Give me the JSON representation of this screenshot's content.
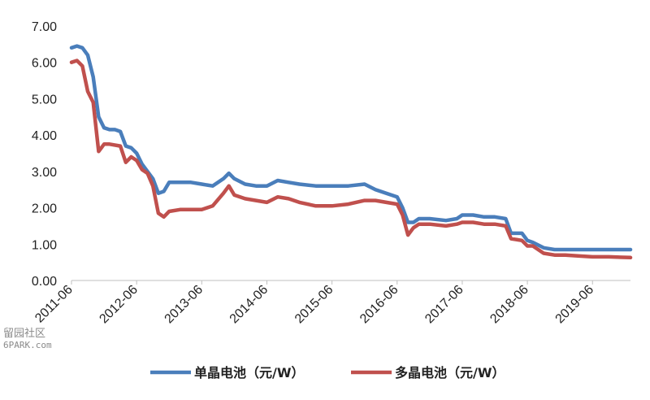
{
  "chart_data": {
    "type": "line",
    "title": "",
    "xlabel": "",
    "ylabel": "",
    "ylim": [
      0,
      7
    ],
    "x_range": [
      "2011-06",
      "2020-01"
    ],
    "y_ticks": [
      "0.00",
      "1.00",
      "2.00",
      "3.00",
      "4.00",
      "5.00",
      "6.00",
      "7.00"
    ],
    "x_ticks": [
      "2011-06",
      "2012-06",
      "2013-06",
      "2014-06",
      "2015-06",
      "2016-06",
      "2017-06",
      "2018-06",
      "2019-06"
    ],
    "grid": false,
    "legend_position": "bottom",
    "series": [
      {
        "name": "单晶电池（元/W）",
        "color": "#4a7ebb",
        "points": [
          [
            "2011-06",
            6.4
          ],
          [
            "2011-07",
            6.45
          ],
          [
            "2011-08",
            6.4
          ],
          [
            "2011-09",
            6.2
          ],
          [
            "2011-10",
            5.6
          ],
          [
            "2011-11",
            4.5
          ],
          [
            "2011-12",
            4.2
          ],
          [
            "2012-01",
            4.15
          ],
          [
            "2012-02",
            4.15
          ],
          [
            "2012-03",
            4.1
          ],
          [
            "2012-04",
            3.7
          ],
          [
            "2012-05",
            3.65
          ],
          [
            "2012-06",
            3.5
          ],
          [
            "2012-07",
            3.2
          ],
          [
            "2012-08",
            3.0
          ],
          [
            "2012-09",
            2.8
          ],
          [
            "2012-10",
            2.4
          ],
          [
            "2012-11",
            2.45
          ],
          [
            "2012-12",
            2.7
          ],
          [
            "2013-02",
            2.7
          ],
          [
            "2013-04",
            2.7
          ],
          [
            "2013-06",
            2.65
          ],
          [
            "2013-08",
            2.6
          ],
          [
            "2013-10",
            2.8
          ],
          [
            "2013-11",
            2.95
          ],
          [
            "2013-12",
            2.8
          ],
          [
            "2014-02",
            2.65
          ],
          [
            "2014-04",
            2.6
          ],
          [
            "2014-06",
            2.6
          ],
          [
            "2014-08",
            2.75
          ],
          [
            "2014-10",
            2.7
          ],
          [
            "2014-12",
            2.65
          ],
          [
            "2015-03",
            2.6
          ],
          [
            "2015-06",
            2.6
          ],
          [
            "2015-09",
            2.6
          ],
          [
            "2015-12",
            2.65
          ],
          [
            "2016-02",
            2.5
          ],
          [
            "2016-04",
            2.4
          ],
          [
            "2016-06",
            2.3
          ],
          [
            "2016-07",
            2.0
          ],
          [
            "2016-08",
            1.6
          ],
          [
            "2016-09",
            1.6
          ],
          [
            "2016-10",
            1.7
          ],
          [
            "2016-12",
            1.7
          ],
          [
            "2017-03",
            1.65
          ],
          [
            "2017-05",
            1.7
          ],
          [
            "2017-06",
            1.8
          ],
          [
            "2017-08",
            1.8
          ],
          [
            "2017-10",
            1.75
          ],
          [
            "2017-12",
            1.75
          ],
          [
            "2018-02",
            1.7
          ],
          [
            "2018-03",
            1.3
          ],
          [
            "2018-05",
            1.3
          ],
          [
            "2018-06",
            1.1
          ],
          [
            "2018-07",
            1.05
          ],
          [
            "2018-09",
            0.9
          ],
          [
            "2018-11",
            0.85
          ],
          [
            "2019-01",
            0.85
          ],
          [
            "2019-03",
            0.85
          ],
          [
            "2019-06",
            0.85
          ],
          [
            "2019-09",
            0.85
          ],
          [
            "2020-01",
            0.85
          ]
        ]
      },
      {
        "name": "多晶电池（元/W）",
        "color": "#c0504d",
        "points": [
          [
            "2011-06",
            6.0
          ],
          [
            "2011-07",
            6.05
          ],
          [
            "2011-08",
            5.9
          ],
          [
            "2011-09",
            5.2
          ],
          [
            "2011-10",
            4.9
          ],
          [
            "2011-11",
            3.55
          ],
          [
            "2011-12",
            3.75
          ],
          [
            "2012-01",
            3.75
          ],
          [
            "2012-03",
            3.7
          ],
          [
            "2012-04",
            3.25
          ],
          [
            "2012-05",
            3.4
          ],
          [
            "2012-06",
            3.3
          ],
          [
            "2012-07",
            3.05
          ],
          [
            "2012-08",
            2.95
          ],
          [
            "2012-09",
            2.6
          ],
          [
            "2012-10",
            1.85
          ],
          [
            "2012-11",
            1.75
          ],
          [
            "2012-12",
            1.9
          ],
          [
            "2013-02",
            1.95
          ],
          [
            "2013-04",
            1.95
          ],
          [
            "2013-06",
            1.95
          ],
          [
            "2013-08",
            2.05
          ],
          [
            "2013-10",
            2.4
          ],
          [
            "2013-11",
            2.6
          ],
          [
            "2013-12",
            2.35
          ],
          [
            "2014-02",
            2.25
          ],
          [
            "2014-04",
            2.2
          ],
          [
            "2014-06",
            2.15
          ],
          [
            "2014-08",
            2.3
          ],
          [
            "2014-10",
            2.25
          ],
          [
            "2014-12",
            2.15
          ],
          [
            "2015-03",
            2.05
          ],
          [
            "2015-06",
            2.05
          ],
          [
            "2015-09",
            2.1
          ],
          [
            "2015-12",
            2.2
          ],
          [
            "2016-02",
            2.2
          ],
          [
            "2016-04",
            2.15
          ],
          [
            "2016-06",
            2.1
          ],
          [
            "2016-07",
            1.8
          ],
          [
            "2016-08",
            1.25
          ],
          [
            "2016-09",
            1.45
          ],
          [
            "2016-10",
            1.55
          ],
          [
            "2016-12",
            1.55
          ],
          [
            "2017-03",
            1.5
          ],
          [
            "2017-05",
            1.55
          ],
          [
            "2017-06",
            1.6
          ],
          [
            "2017-08",
            1.6
          ],
          [
            "2017-10",
            1.55
          ],
          [
            "2017-12",
            1.55
          ],
          [
            "2018-02",
            1.5
          ],
          [
            "2018-03",
            1.15
          ],
          [
            "2018-05",
            1.1
          ],
          [
            "2018-06",
            0.95
          ],
          [
            "2018-07",
            0.95
          ],
          [
            "2018-09",
            0.75
          ],
          [
            "2018-11",
            0.7
          ],
          [
            "2019-01",
            0.7
          ],
          [
            "2019-03",
            0.68
          ],
          [
            "2019-06",
            0.65
          ],
          [
            "2019-09",
            0.65
          ],
          [
            "2020-01",
            0.63
          ]
        ]
      }
    ]
  },
  "watermark": {
    "text": "留园社区",
    "subtext": "6PARK.com"
  }
}
